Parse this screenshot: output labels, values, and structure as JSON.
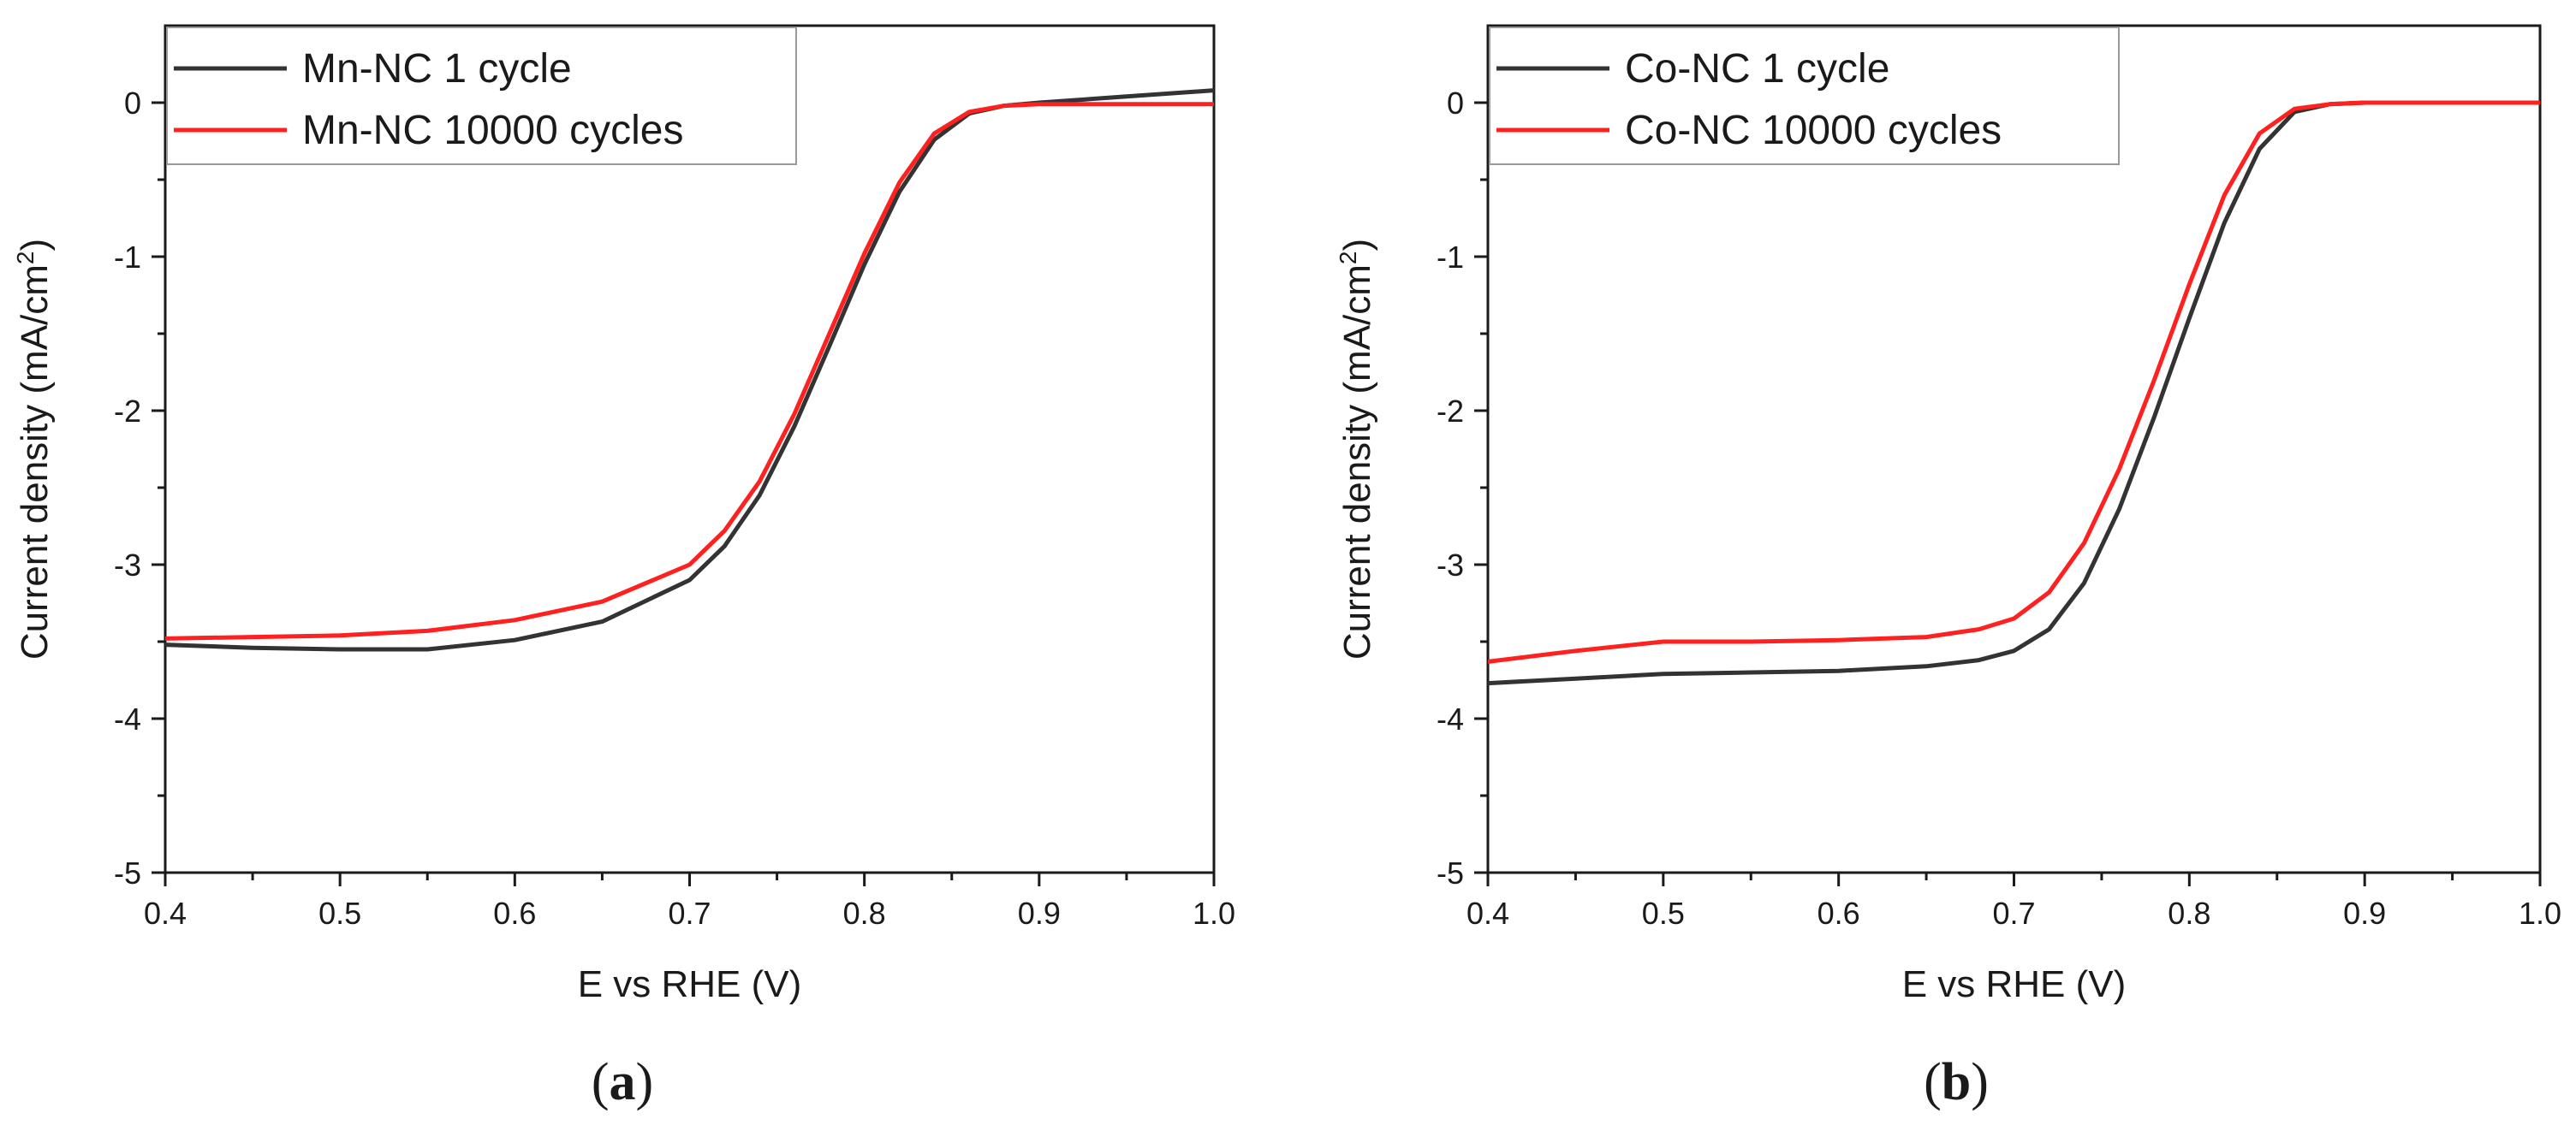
{
  "chart_data": [
    {
      "type": "line",
      "panel_label": "(a)",
      "panel_letter": "a",
      "xlabel": "E vs RHE (V)",
      "ylabel_main": "Current density (mA/cm",
      "ylabel_sup": "2",
      "ylabel_close": ")",
      "xlim": [
        0.4,
        1.0
      ],
      "ylim": [
        -5,
        0.5
      ],
      "xticks": [
        0.4,
        0.5,
        0.6,
        0.7,
        0.8,
        0.9,
        1.0
      ],
      "xtick_labels": [
        "0.4",
        "0.5",
        "0.6",
        "0.7",
        "0.8",
        "0.9",
        "1.0"
      ],
      "yticks": [
        -5,
        -4,
        -3,
        -2,
        -1,
        0
      ],
      "ytick_labels": [
        "-5",
        "-4",
        "-3",
        "-2",
        "-1",
        "0"
      ],
      "legend_position": "top-left",
      "series": [
        {
          "name": "Mn-NC 1 cycle",
          "color": "#333333",
          "x": [
            0.4,
            0.45,
            0.5,
            0.55,
            0.6,
            0.65,
            0.7,
            0.72,
            0.74,
            0.76,
            0.78,
            0.8,
            0.82,
            0.84,
            0.86,
            0.88,
            0.9,
            0.95,
            1.0
          ],
          "y": [
            -3.52,
            -3.54,
            -3.55,
            -3.55,
            -3.49,
            -3.37,
            -3.1,
            -2.88,
            -2.55,
            -2.1,
            -1.58,
            -1.05,
            -0.58,
            -0.24,
            -0.07,
            -0.02,
            0.0,
            0.04,
            0.08
          ]
        },
        {
          "name": "Mn-NC 10000 cycles",
          "color": "#ff2020",
          "x": [
            0.4,
            0.45,
            0.5,
            0.55,
            0.6,
            0.65,
            0.7,
            0.72,
            0.74,
            0.76,
            0.78,
            0.8,
            0.82,
            0.84,
            0.86,
            0.88,
            0.9,
            0.95,
            1.0
          ],
          "y": [
            -3.48,
            -3.47,
            -3.46,
            -3.43,
            -3.36,
            -3.24,
            -3.0,
            -2.78,
            -2.46,
            -2.02,
            -1.5,
            -0.98,
            -0.52,
            -0.2,
            -0.06,
            -0.02,
            -0.01,
            -0.01,
            -0.01
          ]
        }
      ]
    },
    {
      "type": "line",
      "panel_label": "(b)",
      "panel_letter": "b",
      "xlabel": "E vs RHE (V)",
      "ylabel_main": "Current density (mA/cm",
      "ylabel_sup": "2",
      "ylabel_close": ")",
      "xlim": [
        0.4,
        1.0
      ],
      "ylim": [
        -5,
        0.5
      ],
      "xticks": [
        0.4,
        0.5,
        0.6,
        0.7,
        0.8,
        0.9,
        1.0
      ],
      "xtick_labels": [
        "0.4",
        "0.5",
        "0.6",
        "0.7",
        "0.8",
        "0.9",
        "1.0"
      ],
      "yticks": [
        -5,
        -4,
        -3,
        -2,
        -1,
        0
      ],
      "ytick_labels": [
        "-5",
        "-4",
        "-3",
        "-2",
        "-1",
        "0"
      ],
      "legend_position": "top-left",
      "series": [
        {
          "name": "Co-NC 1 cycle",
          "color": "#333333",
          "x": [
            0.4,
            0.45,
            0.5,
            0.55,
            0.6,
            0.65,
            0.68,
            0.7,
            0.72,
            0.74,
            0.76,
            0.78,
            0.8,
            0.82,
            0.84,
            0.86,
            0.88,
            0.9,
            0.95,
            1.0
          ],
          "y": [
            -3.77,
            -3.74,
            -3.71,
            -3.7,
            -3.69,
            -3.66,
            -3.62,
            -3.56,
            -3.42,
            -3.12,
            -2.64,
            -2.04,
            -1.4,
            -0.78,
            -0.3,
            -0.06,
            -0.01,
            0.0,
            0.0,
            0.0
          ]
        },
        {
          "name": "Co-NC 10000 cycles",
          "color": "#ff2020",
          "x": [
            0.4,
            0.45,
            0.5,
            0.55,
            0.6,
            0.65,
            0.68,
            0.7,
            0.72,
            0.74,
            0.76,
            0.78,
            0.8,
            0.82,
            0.84,
            0.86,
            0.88,
            0.9,
            0.95,
            1.0
          ],
          "y": [
            -3.63,
            -3.56,
            -3.5,
            -3.5,
            -3.49,
            -3.47,
            -3.42,
            -3.35,
            -3.18,
            -2.86,
            -2.38,
            -1.8,
            -1.18,
            -0.6,
            -0.2,
            -0.04,
            -0.01,
            0.0,
            0.0,
            0.0
          ]
        }
      ]
    }
  ]
}
